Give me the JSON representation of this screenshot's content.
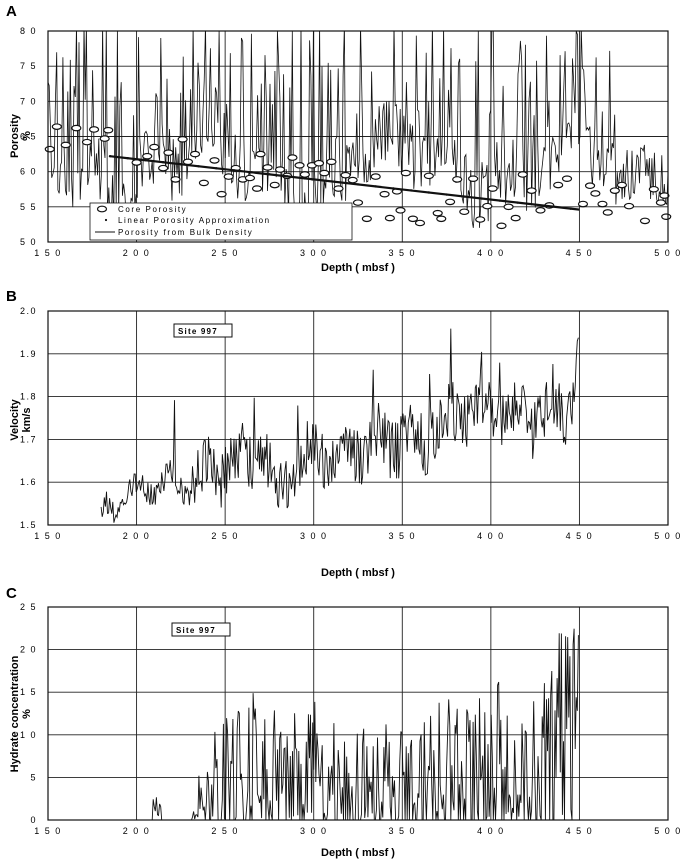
{
  "chart_data": [
    {
      "panel": "A",
      "type": "line",
      "xlabel": "Depth ( mbsf )",
      "ylabel": [
        "Porosity",
        "%"
      ],
      "xlim": [
        150,
        500
      ],
      "ylim": [
        50,
        80
      ],
      "x_ticks": [
        "1 5 0",
        "2 0 0",
        "2 5 0",
        "3 0 0",
        "3 5 0",
        "4 0 0",
        "4 5 0",
        "5 0 0"
      ],
      "y_ticks": [
        "5 0",
        "5 5",
        "6 0",
        "6 5",
        "7 0",
        "7 5",
        "8 0"
      ],
      "y_tick_values": [
        50,
        55,
        60,
        65,
        70,
        75,
        80
      ],
      "x_tick_values": [
        150,
        200,
        250,
        300,
        350,
        400,
        450,
        500
      ],
      "grid": true,
      "legend_position": "bottom-left",
      "legend": [
        "Core Porosity",
        "Linear Porosity Approximation",
        "Porosity from Bulk Density"
      ],
      "series": [
        {
          "name": "Core Porosity",
          "kind": "scatter",
          "x": [
            151,
            155,
            160,
            166,
            172,
            176,
            182,
            184,
            200,
            206,
            210,
            215,
            218,
            222,
            226,
            229,
            233,
            238,
            244,
            248,
            252,
            256,
            260,
            264,
            268,
            270,
            274,
            278,
            281,
            285,
            288,
            292,
            295,
            299,
            303,
            306,
            310,
            314,
            318,
            322,
            325,
            330,
            335,
            340,
            343,
            347,
            349,
            352,
            356,
            360,
            365,
            370,
            372,
            377,
            381,
            385,
            390,
            394,
            398,
            401,
            406,
            410,
            414,
            418,
            423,
            428,
            433,
            438,
            443,
            452,
            456,
            459,
            463,
            466,
            470,
            474,
            478,
            487,
            492,
            496,
            498,
            499
          ],
          "y": [
            63.2,
            66.4,
            63.8,
            66.2,
            64.2,
            66.0,
            64.7,
            65.9,
            61.3,
            62.2,
            63.5,
            60.5,
            62.7,
            58.9,
            64.6,
            61.4,
            62.5,
            58.4,
            61.6,
            56.8,
            59.3,
            60.5,
            58.9,
            59.1,
            57.6,
            62.5,
            60.6,
            58.1,
            60.3,
            59.4,
            62.0,
            60.9,
            59.6,
            60.9,
            61.2,
            59.8,
            61.4,
            57.6,
            59.5,
            58.8,
            55.6,
            53.3,
            59.3,
            56.8,
            53.4,
            57.2,
            54.5,
            59.8,
            53.3,
            52.7,
            59.4,
            54.1,
            53.3,
            55.7,
            58.9,
            54.3,
            59.0,
            53.2,
            55.1,
            57.6,
            52.3,
            55.0,
            53.4,
            59.6,
            57.3,
            54.5,
            55.2,
            58.1,
            59.0,
            55.4,
            58.0,
            56.9,
            55.4,
            54.2,
            57.3,
            58.1,
            55.1,
            53.0,
            57.5,
            55.6,
            56.6,
            53.6
          ]
        },
        {
          "name": "Linear Porosity Approximation",
          "kind": "line",
          "x": [
            185,
            450
          ],
          "y": [
            62.2,
            54.6
          ]
        },
        {
          "name": "Porosity from Bulk Density",
          "kind": "log",
          "depth_range": [
            150,
            500
          ],
          "value_range": [
            52,
            80
          ],
          "visual_note": "continuous noisy downhole log, frequently clipping at 80"
        }
      ]
    },
    {
      "panel": "B",
      "type": "line",
      "xlabel": "Depth ( mbsf )",
      "ylabel": [
        "Velocity",
        "km/s"
      ],
      "xlim": [
        150,
        500
      ],
      "ylim": [
        1.5,
        2.0
      ],
      "x_ticks": [
        "1 5 0",
        "2 0 0",
        "2 5 0",
        "3 0 0",
        "3 5 0",
        "4 0 0",
        "4 5 0",
        "5 0 0"
      ],
      "y_ticks": [
        "1.5",
        "1.6",
        "1.7",
        "1.8",
        "1.9",
        "2.0"
      ],
      "y_tick_values": [
        1.5,
        1.6,
        1.7,
        1.8,
        1.9,
        2.0
      ],
      "x_tick_values": [
        150,
        200,
        250,
        300,
        350,
        400,
        450,
        500
      ],
      "grid": true,
      "annotation": "Site 997",
      "series": [
        {
          "name": "Velocity log",
          "kind": "log",
          "trend_x": [
            180,
            185,
            200,
            210,
            220,
            230,
            250,
            270,
            280,
            300,
            320,
            340,
            360,
            380,
            400,
            420,
            435,
            445,
            450
          ],
          "trend_y": [
            1.51,
            1.55,
            1.575,
            1.605,
            1.59,
            1.6,
            1.64,
            1.66,
            1.59,
            1.67,
            1.67,
            1.7,
            1.7,
            1.76,
            1.77,
            1.75,
            1.75,
            1.8,
            1.92
          ]
        }
      ]
    },
    {
      "panel": "C",
      "type": "line",
      "xlabel": "Depth ( mbsf )",
      "ylabel": [
        "Hydrate concentration",
        "%"
      ],
      "xlim": [
        150,
        500
      ],
      "ylim": [
        0,
        25
      ],
      "x_ticks": [
        "1 5 0",
        "2 0 0",
        "2 5 0",
        "3 0 0",
        "3 5 0",
        "4 0 0",
        "4 5 0",
        "5 0 0"
      ],
      "y_ticks": [
        "0",
        "5",
        "1 0",
        "1 5",
        "2 0",
        "2 5"
      ],
      "y_tick_values": [
        0,
        5,
        10,
        15,
        20,
        25
      ],
      "x_tick_values": [
        150,
        200,
        250,
        300,
        350,
        400,
        450,
        500
      ],
      "grid": true,
      "annotation": "Site 997",
      "series": [
        {
          "name": "Hydrate concentration",
          "kind": "log",
          "envelope_x": [
            180,
            195,
            200,
            210,
            215,
            230,
            240,
            250,
            260,
            270,
            280,
            290,
            300,
            310,
            320,
            330,
            340,
            350,
            360,
            370,
            380,
            390,
            400,
            410,
            420,
            430,
            440,
            445,
            450
          ],
          "envelope_y": [
            0,
            1,
            1,
            3,
            2,
            2,
            10,
            12,
            14,
            16,
            12,
            13,
            14,
            12,
            13,
            11,
            12,
            11,
            11,
            15,
            15,
            14,
            16,
            17,
            13,
            17,
            23,
            22,
            25
          ]
        }
      ]
    }
  ]
}
